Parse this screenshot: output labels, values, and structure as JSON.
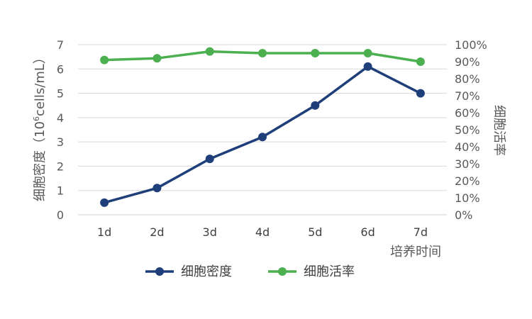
{
  "chart_data": {
    "type": "line",
    "categories": [
      "1d",
      "2d",
      "3d",
      "4d",
      "5d",
      "6d",
      "7d"
    ],
    "series": [
      {
        "name": "细胞密度",
        "axis": "left",
        "color": "#1f3f7a",
        "values": [
          0.5,
          1.1,
          2.3,
          3.2,
          4.5,
          6.1,
          5.0
        ]
      },
      {
        "name": "细胞活率",
        "axis": "right",
        "color": "#4caf50",
        "values": [
          91,
          92,
          96,
          95,
          95,
          95,
          90
        ]
      }
    ],
    "xlabel": "培养时间",
    "ylabel_prefix": "细胞密度（10",
    "ylabel_sup": "6",
    "ylabel_suffix": "cells/mL）",
    "y2label": "细胞活率",
    "ylim": [
      0,
      7
    ],
    "y2lim": [
      0,
      100
    ],
    "yticks": [
      "0",
      "1",
      "2",
      "3",
      "4",
      "5",
      "6",
      "7"
    ],
    "y2ticks": [
      "0%",
      "10%",
      "20%",
      "30%",
      "40%",
      "50%",
      "60%",
      "70%",
      "80%",
      "90%",
      "100%"
    ],
    "grid": true,
    "legend_position": "bottom"
  }
}
